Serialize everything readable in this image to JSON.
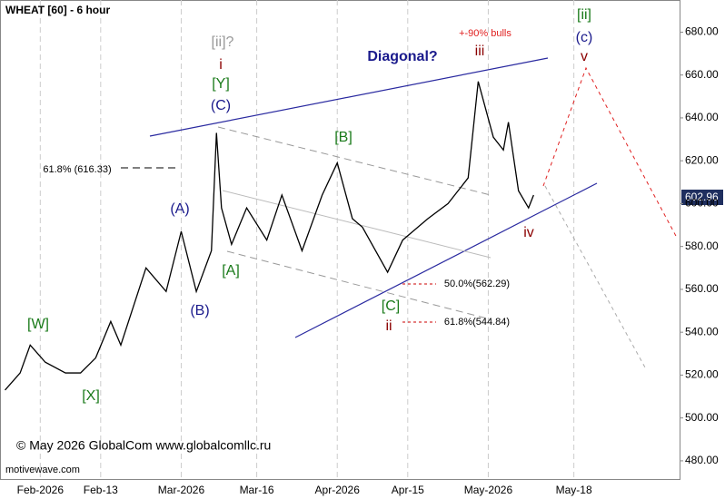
{
  "chart_data": {
    "type": "line",
    "title": "WHEAT [60] - 6 hour",
    "watermark": "© May 2026 GlobalCom www.globalcomllc.ru",
    "source": "motivewave.com",
    "last_price_label": "602.96",
    "x": [
      25,
      28,
      30,
      33,
      37,
      40,
      43,
      46,
      48,
      53,
      57,
      60,
      63,
      66,
      67,
      68,
      70,
      73,
      77,
      80,
      84,
      88,
      91,
      94,
      96,
      101,
      104,
      109,
      113,
      117,
      119,
      122,
      124,
      125,
      127,
      129,
      130
    ],
    "series": [
      {
        "name": "WHEAT",
        "color": "#000000",
        "values": [
          513,
          521,
          534,
          526,
          521,
          521,
          528,
          545,
          534,
          570,
          559,
          587,
          559,
          578,
          633,
          598,
          581,
          598,
          583,
          604,
          578,
          604,
          619,
          593,
          589,
          568,
          583,
          593,
          600,
          612,
          657,
          631,
          625,
          638,
          606,
          598,
          604
        ]
      }
    ],
    "xlim": [
      24,
      159
    ],
    "xticks": [
      {
        "value": 32,
        "label": "Feb-2026"
      },
      {
        "value": 44,
        "label": "Feb-13"
      },
      {
        "value": 60,
        "label": "Mar-2026"
      },
      {
        "value": 75,
        "label": "Mar-16"
      },
      {
        "value": 91,
        "label": "Apr-2026"
      },
      {
        "value": 105,
        "label": "Apr-15"
      },
      {
        "value": 121,
        "label": "May-2026"
      },
      {
        "value": 138,
        "label": "May-18"
      }
    ],
    "ylim": [
      471.5,
      695
    ],
    "yticks": [
      {
        "value": 480,
        "label": "480.00"
      },
      {
        "value": 500,
        "label": "500.00"
      },
      {
        "value": 520,
        "label": "520.00"
      },
      {
        "value": 540,
        "label": "540.00"
      },
      {
        "value": 560,
        "label": "560.00"
      },
      {
        "value": 580,
        "label": "580.00"
      },
      {
        "value": 600,
        "label": "600.00"
      },
      {
        "value": 620,
        "label": "620.00"
      },
      {
        "value": 640,
        "label": "640.00"
      },
      {
        "value": 660,
        "label": "660.00"
      },
      {
        "value": 680,
        "label": "680.00"
      }
    ],
    "grid": true,
    "annotations": [
      {
        "text": "[ii]?",
        "color": "#999999"
      },
      {
        "text": "i",
        "color": "#8b0000"
      },
      {
        "text": "[Y]",
        "color": "#1a7a1a"
      },
      {
        "text": "(C)",
        "color": "#1a1a8c"
      },
      {
        "text": "(A)",
        "color": "#1a1a8c"
      },
      {
        "text": "(B)",
        "color": "#1a1a8c"
      },
      {
        "text": "[W]",
        "color": "#1a7a1a"
      },
      {
        "text": "[X]",
        "color": "#1a7a1a"
      },
      {
        "text": "[A]",
        "color": "#1a7a1a"
      },
      {
        "text": "[B]",
        "color": "#1a7a1a"
      },
      {
        "text": "[C]",
        "color": "#1a7a1a"
      },
      {
        "text": "ii",
        "color": "#8b0000"
      },
      {
        "text": "iii",
        "color": "#8b0000"
      },
      {
        "text": "+-90% bulls",
        "color": "#e02020"
      },
      {
        "text": "Diagonal?",
        "color": "#1a1a8c"
      },
      {
        "text": "iv",
        "color": "#8b0000"
      },
      {
        "text": "[ii]",
        "color": "#1a7a1a"
      },
      {
        "text": "(c)",
        "color": "#1a1a8c"
      },
      {
        "text": "v",
        "color": "#8b0000"
      },
      {
        "text": "61.8% (616.33)",
        "color": "#000000"
      },
      {
        "text": "50.0%(562.29)",
        "color": "#000000"
      },
      {
        "text": "61.8%(544.84)",
        "color": "#000000"
      }
    ]
  }
}
